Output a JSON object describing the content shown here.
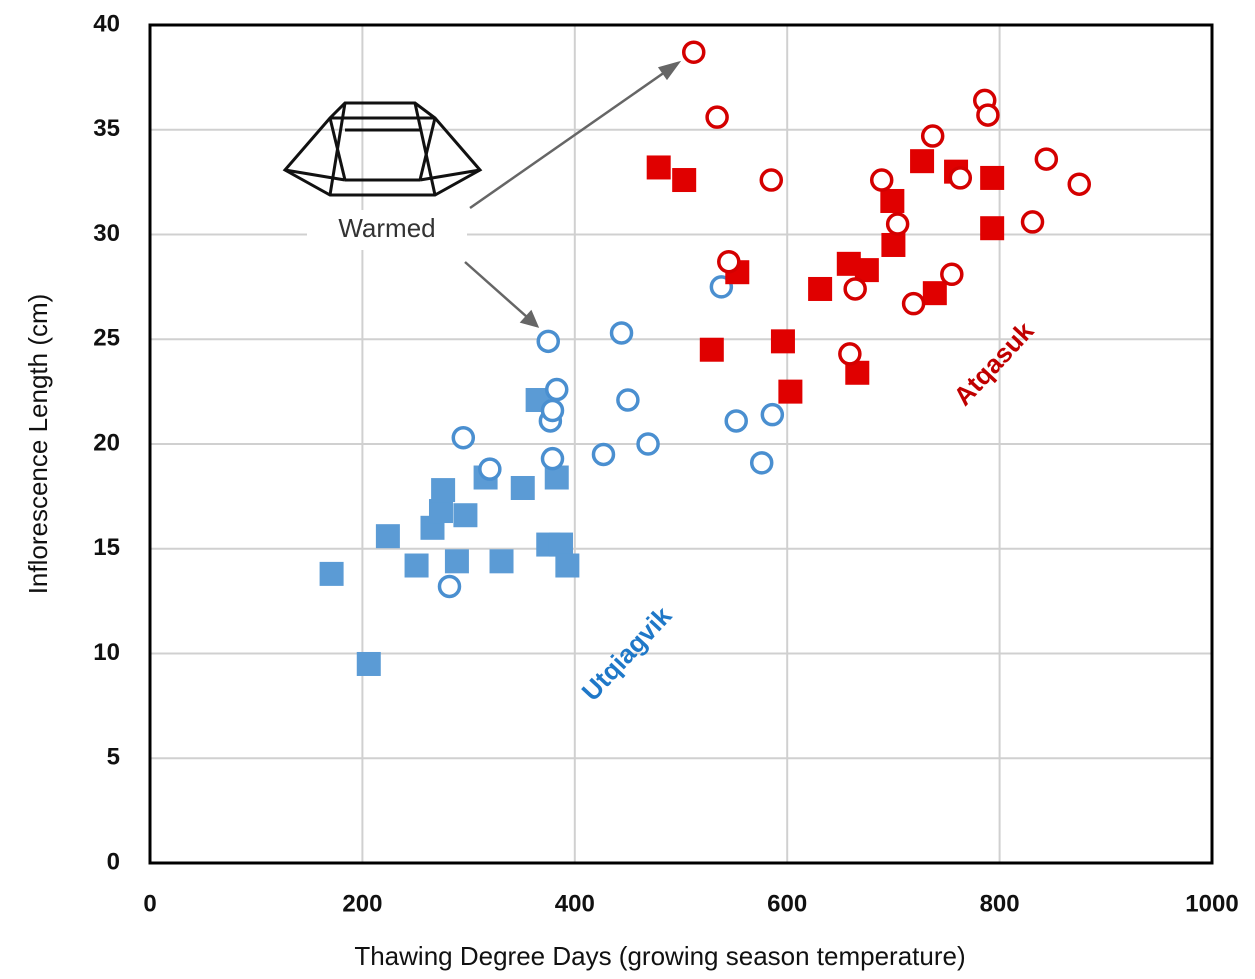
{
  "chart_data": {
    "type": "scatter",
    "x_label": "Thawing Degree Days (growing season temperature)",
    "y_label": "Inflorescence Length (cm)",
    "xlim": [
      0,
      1000
    ],
    "xticks": [
      0,
      200,
      400,
      600,
      800,
      1000
    ],
    "ylim": [
      0,
      40
    ],
    "yticks": [
      0,
      5,
      10,
      15,
      20,
      25,
      30,
      35,
      40
    ],
    "grid": true,
    "series": [
      {
        "color": "#5b9bd5",
        "marker": "square",
        "filled": true,
        "x": [
          171,
          206,
          224,
          251,
          266,
          274,
          276,
          289,
          297,
          316,
          331,
          351,
          365,
          375,
          383,
          387,
          393
        ],
        "values": [
          13.8,
          9.5,
          15.6,
          14.2,
          16.0,
          16.8,
          17.8,
          14.4,
          16.6,
          18.4,
          14.4,
          17.9,
          22.1,
          15.2,
          18.4,
          15.2,
          14.2
        ]
      },
      {
        "color": "#4a8fd0",
        "marker": "circle",
        "filled": false,
        "x": [
          282,
          295,
          320,
          375,
          377,
          379,
          383,
          379,
          427,
          444,
          450,
          469,
          538,
          552,
          576,
          586
        ],
        "values": [
          13.2,
          20.3,
          18.8,
          24.9,
          21.1,
          21.6,
          22.6,
          19.3,
          19.5,
          25.3,
          22.1,
          20.0,
          27.5,
          21.1,
          19.1,
          21.4
        ]
      },
      {
        "color": "#e00000",
        "marker": "square",
        "filled": true,
        "x": [
          479,
          503,
          529,
          553,
          596,
          603,
          631,
          658,
          666,
          675,
          699,
          700,
          727,
          739,
          759,
          793,
          793
        ],
        "values": [
          33.2,
          32.6,
          24.5,
          28.2,
          24.9,
          22.5,
          27.4,
          28.6,
          23.4,
          28.3,
          31.6,
          29.5,
          33.5,
          27.2,
          33.0,
          32.7,
          30.3
        ]
      },
      {
        "color": "#d40000",
        "marker": "circle",
        "filled": false,
        "x": [
          512,
          534,
          545,
          585,
          659,
          664,
          689,
          704,
          719,
          737,
          755,
          763,
          786,
          789,
          831,
          844,
          875
        ],
        "values": [
          38.7,
          35.6,
          28.7,
          32.6,
          24.3,
          27.4,
          32.6,
          30.5,
          26.7,
          34.7,
          28.1,
          32.7,
          36.4,
          35.7,
          30.6,
          33.6,
          32.4
        ]
      }
    ],
    "annotations": [
      {
        "text": "Warmed",
        "color": "#333333"
      },
      {
        "text": "Utqiagvik",
        "color": "#1f78c8"
      },
      {
        "text": "Atqasuk",
        "color": "#c00000"
      }
    ]
  }
}
